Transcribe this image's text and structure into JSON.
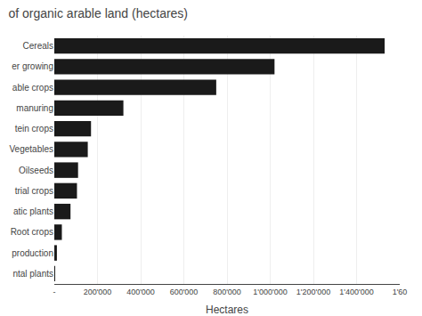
{
  "chart_data": {
    "type": "bar",
    "orientation": "horizontal",
    "title": "of organic arable land (hectares)",
    "xlabel": "Hectares",
    "categories": [
      "Cereals",
      "er growing",
      "able crops",
      "manuring",
      "tein crops",
      "Vegetables",
      "Oilseeds",
      "trial crops",
      "atic plants",
      "Root crops",
      "production",
      "ntal plants"
    ],
    "values": [
      1530000,
      1020000,
      750000,
      320000,
      170000,
      155000,
      110000,
      105000,
      75000,
      35000,
      12000,
      2000
    ],
    "color": "#1a1a1a",
    "xlim": [
      0,
      1600000
    ],
    "xticks": [
      {
        "value": 0,
        "label": "-"
      },
      {
        "value": 200000,
        "label": "200'000"
      },
      {
        "value": 400000,
        "label": "400'000"
      },
      {
        "value": 600000,
        "label": "600'000"
      },
      {
        "value": 800000,
        "label": "800'000"
      },
      {
        "value": 1000000,
        "label": "1'000'000"
      },
      {
        "value": 1200000,
        "label": "1'200'000"
      },
      {
        "value": 1400000,
        "label": "1'400'000"
      },
      {
        "value": 1600000,
        "label": "1'60"
      }
    ],
    "grid": true
  }
}
